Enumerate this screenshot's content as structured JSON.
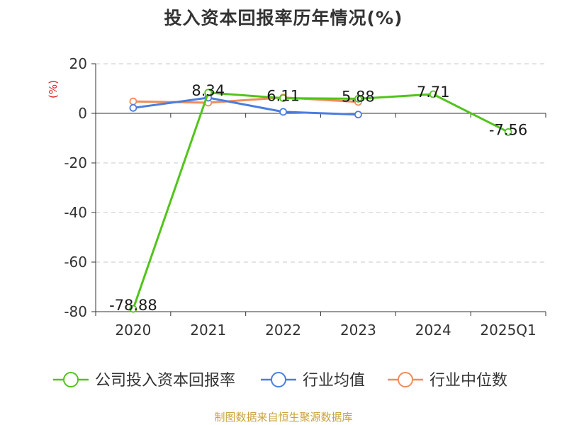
{
  "chart_data": {
    "type": "line",
    "title": "投入资本回报率历年情况(%)",
    "ylabel": "(%)",
    "xlabel": "",
    "categories": [
      "2020",
      "2021",
      "2022",
      "2023",
      "2024",
      "2025Q1"
    ],
    "ylim": [
      -80,
      20
    ],
    "yticks": [
      20,
      0,
      -20,
      -40,
      -60,
      -80
    ],
    "grid": "horizontal-dashed",
    "legend_position": "bottom",
    "series": [
      {
        "name": "公司投入资本回报率",
        "color": "#52c41a",
        "values": [
          -78.88,
          8.34,
          6.11,
          5.88,
          7.71,
          -7.56
        ],
        "data_labels": [
          "-78.88",
          "8.34",
          "6.11",
          "5.88",
          "7.71",
          "-7.56"
        ]
      },
      {
        "name": "行业均值",
        "color": "#4a7de0",
        "values": [
          2.2,
          6.3,
          0.6,
          -0.5,
          null,
          null
        ]
      },
      {
        "name": "行业中位数",
        "color": "#f08c5a",
        "values": [
          4.8,
          4.3,
          6.4,
          4.6,
          null,
          null
        ]
      }
    ]
  },
  "source_note": "制图数据来自恒生聚源数据库"
}
